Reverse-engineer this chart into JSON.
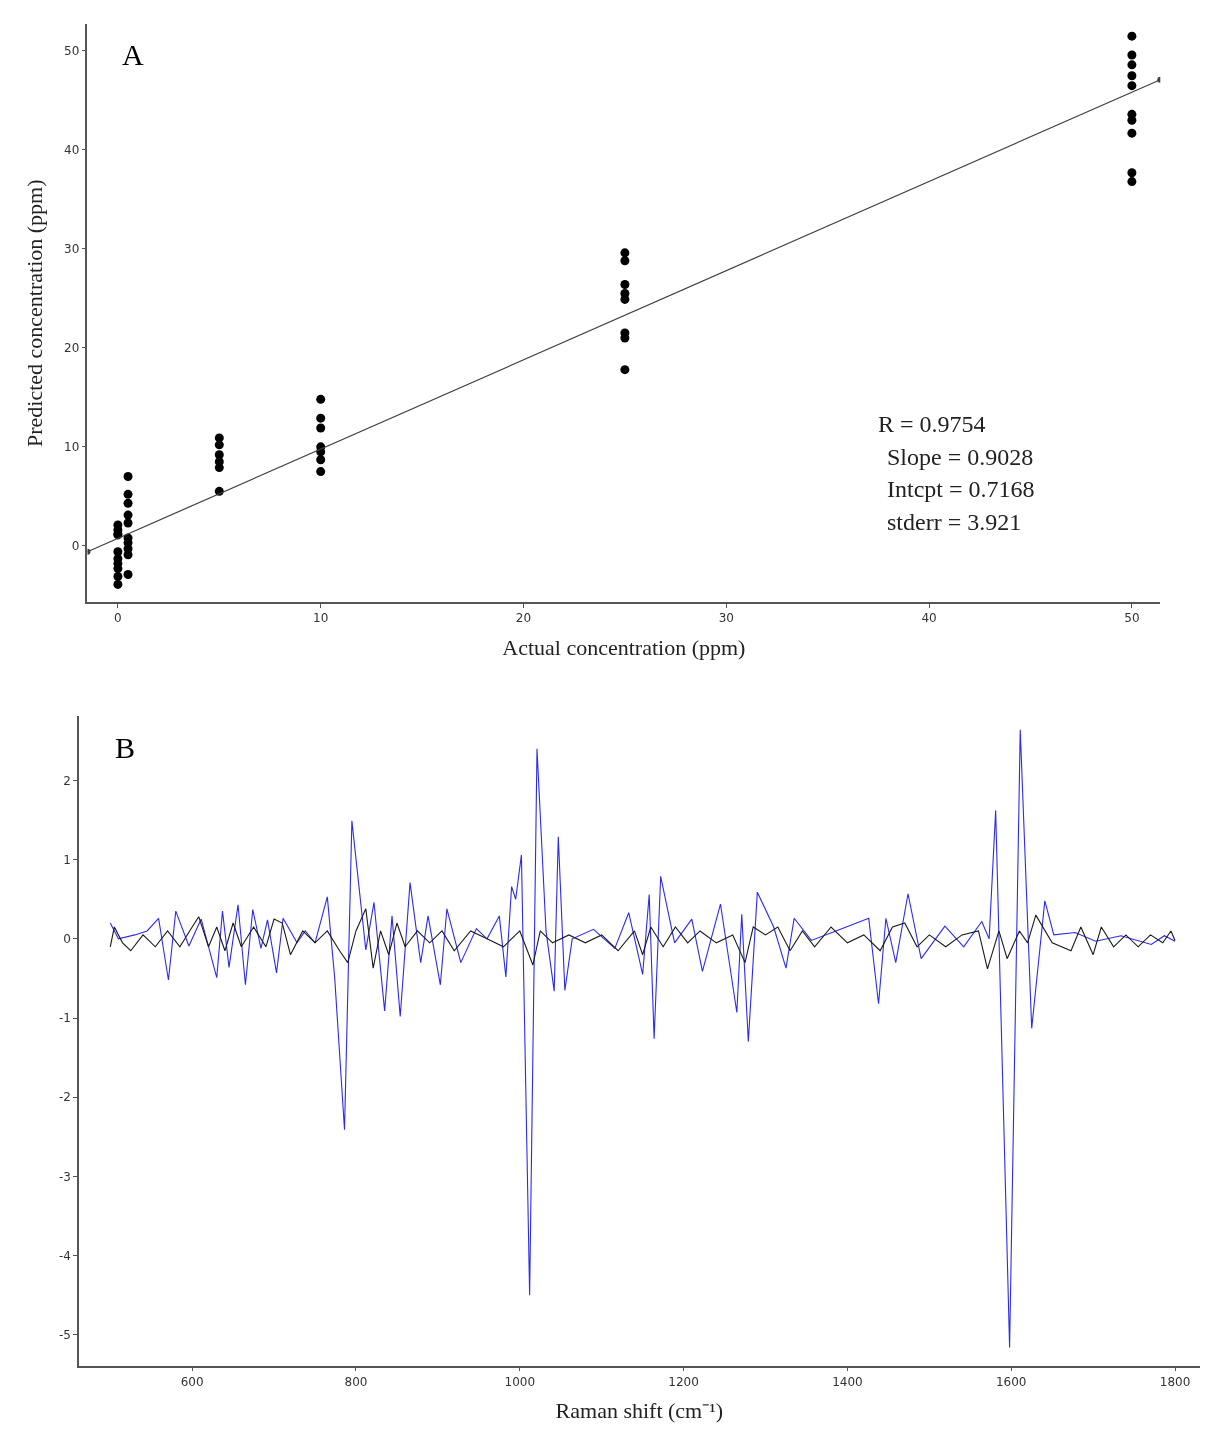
{
  "chart_data": [
    {
      "type": "scatter",
      "xlabel": "Actual concentration (ppm)",
      "ylabel": "Predicted concentration (ppm)",
      "annotations": [
        "A",
        "R = 0.9754",
        "Slope = 0.9028",
        "Intcpt = 0.7168",
        "stderr = 3.921"
      ],
      "xlim": [
        -1.5,
        51.4
      ],
      "ylim": [
        -5.7,
        52.7
      ],
      "xticks": [
        0,
        10,
        20,
        30,
        40,
        50
      ],
      "yticks": [
        0,
        10,
        20,
        30,
        40,
        50
      ],
      "marker": "circle",
      "series": [
        {
          "type": "scatter",
          "color": "#000000",
          "x": [
            0,
            0,
            0,
            0,
            0,
            0,
            0,
            0,
            0,
            0,
            0.5,
            0.5,
            0.5,
            0.5,
            0.5,
            0.5,
            0.5,
            0.5,
            0.5,
            0.5,
            5,
            5,
            5,
            5,
            5,
            5,
            10,
            10,
            10,
            10,
            10,
            10,
            10,
            25,
            25,
            25,
            25,
            25,
            25,
            25,
            25,
            50,
            50,
            50,
            50,
            50,
            50,
            50,
            50,
            50,
            50
          ],
          "values": [
            2.1,
            1.6,
            1.2,
            1.1,
            -0.6,
            -1.3,
            -1.8,
            -2.3,
            -3.1,
            -3.9,
            7.0,
            5.2,
            4.3,
            3.1,
            2.3,
            0.8,
            0.3,
            -0.3,
            -0.9,
            -2.9,
            10.9,
            10.2,
            9.2,
            8.5,
            7.9,
            5.5,
            14.8,
            12.9,
            11.9,
            10.0,
            9.5,
            8.7,
            7.5,
            29.6,
            28.8,
            26.4,
            25.5,
            24.9,
            21.5,
            21.0,
            17.8,
            51.5,
            49.6,
            48.6,
            47.5,
            46.5,
            43.6,
            43.0,
            41.7,
            37.7,
            36.8
          ]
        },
        {
          "type": "line",
          "color": "#404040",
          "x": [
            -1.5,
            51.4
          ],
          "values": [
            -0.6,
            47.1
          ]
        }
      ]
    },
    {
      "type": "line",
      "xlabel": "Raman shift (cm⁻¹)",
      "annotations": [
        "B"
      ],
      "xlim": [
        462,
        1830
      ],
      "ylim": [
        -5.39,
        2.81
      ],
      "xticks": [
        600,
        800,
        1000,
        1200,
        1400,
        1600,
        1800
      ],
      "yticks": [
        -5,
        -4,
        -3,
        -2,
        -1,
        0,
        1,
        2
      ],
      "series": [
        {
          "color": "#2b2bef",
          "x": [
            500,
            510,
            530,
            545,
            559,
            571,
            580,
            596,
            611,
            630,
            637,
            645,
            656,
            665,
            674,
            684,
            692,
            703,
            711,
            728,
            738,
            750,
            765,
            774,
            786,
            795,
            812,
            822,
            835,
            844,
            854,
            866,
            879,
            888,
            903,
            911,
            928,
            947,
            960,
            975,
            983,
            990,
            995,
            1002,
            1012,
            1021,
            1032,
            1042,
            1047,
            1055,
            1064,
            1090,
            1116,
            1133,
            1150,
            1158,
            1164,
            1172,
            1189,
            1210,
            1223,
            1245,
            1265,
            1271,
            1279,
            1290,
            1310,
            1325,
            1335,
            1356,
            1386,
            1426,
            1438,
            1447,
            1459,
            1474,
            1490,
            1519,
            1542,
            1564,
            1573,
            1581,
            1598,
            1611,
            1625,
            1641,
            1652,
            1678,
            1703,
            1734,
            1771,
            1787,
            1800
          ],
          "values": [
            0.2,
            0.0,
            0.05,
            0.1,
            0.26,
            -0.52,
            0.35,
            -0.09,
            0.25,
            -0.49,
            0.35,
            -0.36,
            0.43,
            -0.58,
            0.37,
            -0.12,
            0.24,
            -0.43,
            0.26,
            -0.05,
            0.1,
            -0.05,
            0.53,
            -0.49,
            -2.41,
            1.49,
            -0.14,
            0.46,
            -0.91,
            0.29,
            -0.98,
            0.71,
            -0.3,
            0.29,
            -0.58,
            0.38,
            -0.3,
            0.13,
            0.0,
            0.29,
            -0.48,
            0.66,
            0.5,
            1.06,
            -4.5,
            2.4,
            0.1,
            -0.66,
            1.29,
            -0.65,
            0.0,
            0.12,
            -0.12,
            0.33,
            -0.45,
            0.56,
            -1.26,
            0.79,
            -0.05,
            0.25,
            -0.41,
            0.44,
            -0.93,
            0.31,
            -1.3,
            0.59,
            0.15,
            -0.37,
            0.26,
            -0.02,
            0.1,
            0.26,
            -0.82,
            0.26,
            -0.3,
            0.57,
            -0.25,
            0.16,
            -0.1,
            0.22,
            0.0,
            1.62,
            -5.16,
            2.64,
            -1.13,
            0.48,
            0.05,
            0.08,
            -0.03,
            0.04,
            -0.07,
            0.04,
            -0.03
          ]
        },
        {
          "color": "#1a1a1a",
          "x": [
            500,
            505,
            515,
            525,
            540,
            555,
            570,
            585,
            600,
            608,
            620,
            630,
            640,
            650,
            660,
            675,
            690,
            700,
            710,
            720,
            735,
            750,
            765,
            780,
            790,
            800,
            812,
            821,
            830,
            840,
            850,
            860,
            875,
            890,
            905,
            920,
            940,
            960,
            980,
            1000,
            1016,
            1025,
            1040,
            1060,
            1080,
            1100,
            1120,
            1140,
            1150,
            1160,
            1175,
            1190,
            1205,
            1220,
            1240,
            1260,
            1275,
            1285,
            1300,
            1315,
            1330,
            1345,
            1360,
            1380,
            1400,
            1420,
            1440,
            1455,
            1470,
            1485,
            1500,
            1520,
            1540,
            1560,
            1571,
            1585,
            1595,
            1610,
            1620,
            1630,
            1650,
            1673,
            1685,
            1700,
            1710,
            1725,
            1740,
            1755,
            1770,
            1785,
            1795,
            1800
          ],
          "values": [
            -0.1,
            0.15,
            -0.05,
            -0.15,
            0.05,
            -0.1,
            0.1,
            -0.1,
            0.15,
            0.28,
            -0.1,
            0.15,
            -0.15,
            0.2,
            -0.1,
            0.15,
            -0.1,
            0.25,
            0.2,
            -0.2,
            0.1,
            -0.05,
            0.1,
            -0.15,
            -0.3,
            0.1,
            0.38,
            -0.37,
            0.1,
            -0.2,
            0.2,
            -0.1,
            0.1,
            -0.05,
            0.1,
            -0.15,
            0.1,
            0.0,
            -0.1,
            0.1,
            -0.33,
            0.1,
            -0.05,
            0.05,
            -0.05,
            0.05,
            -0.15,
            0.1,
            -0.2,
            0.15,
            -0.1,
            0.15,
            -0.05,
            0.1,
            -0.05,
            0.05,
            -0.3,
            0.15,
            0.05,
            0.15,
            -0.15,
            0.1,
            -0.1,
            0.15,
            -0.05,
            0.05,
            -0.15,
            0.15,
            0.2,
            -0.1,
            0.05,
            -0.1,
            0.05,
            0.1,
            -0.38,
            0.1,
            -0.25,
            0.1,
            -0.05,
            0.3,
            -0.05,
            -0.15,
            0.15,
            -0.2,
            0.15,
            -0.1,
            0.05,
            -0.1,
            0.05,
            -0.05,
            0.1,
            -0.02
          ]
        }
      ]
    }
  ]
}
